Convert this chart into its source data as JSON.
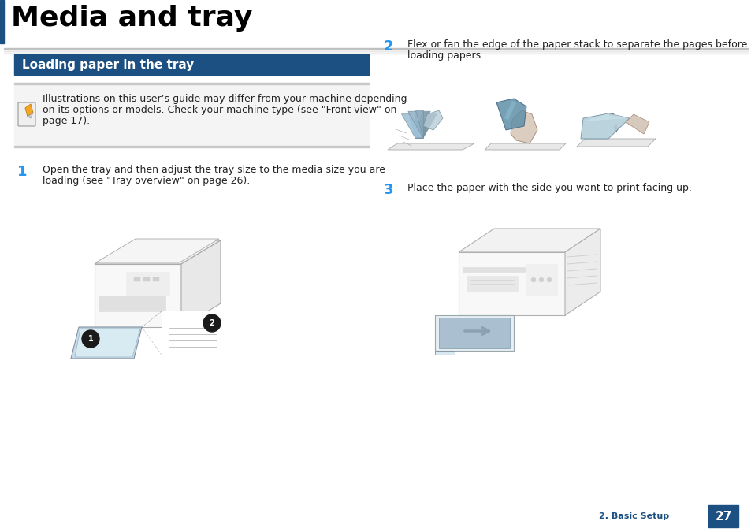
{
  "title": "Media and tray",
  "title_fontsize": 26,
  "title_color": "#000000",
  "background_color": "#ffffff",
  "section_header_text": "Loading paper in the tray",
  "section_header_bg": "#1c4f82",
  "section_header_color": "#ffffff",
  "section_header_fontsize": 11,
  "note_bg_top": "#d8d8d8",
  "note_bg_mid": "#f0f0f0",
  "note_bg_bot": "#d8d8d8",
  "note_text_line1": "Illustrations on this user’s guide may differ from your machine depending",
  "note_text_line2": "on its options or models. Check your machine type (see \"Front view\" on",
  "note_text_line3": "page 17).",
  "note_fontsize": 9,
  "step1_num": "1",
  "step1_color": "#2196f3",
  "step1_text_line1": "Open the tray and then adjust the tray size to the media size you are",
  "step1_text_line2": "loading (see \"Tray overview\" on page 26).",
  "step2_num": "2",
  "step2_color": "#2196f3",
  "step2_text_line1": "Flex or fan the edge of the paper stack to separate the pages before",
  "step2_text_line2": "loading papers.",
  "step3_num": "3",
  "step3_color": "#2196f3",
  "step3_text": "Place the paper with the side you want to print facing up.",
  "step_fontsize": 9,
  "footer_text": "2. Basic Setup",
  "footer_num": "27",
  "footer_bg": "#1c4f82",
  "footer_color": "#ffffff",
  "footer_num_fontsize": 11,
  "footer_text_fontsize": 8,
  "left_bar_color": "#1c4f82",
  "divider_color": "#b0b8c8",
  "col_split": 0.495
}
